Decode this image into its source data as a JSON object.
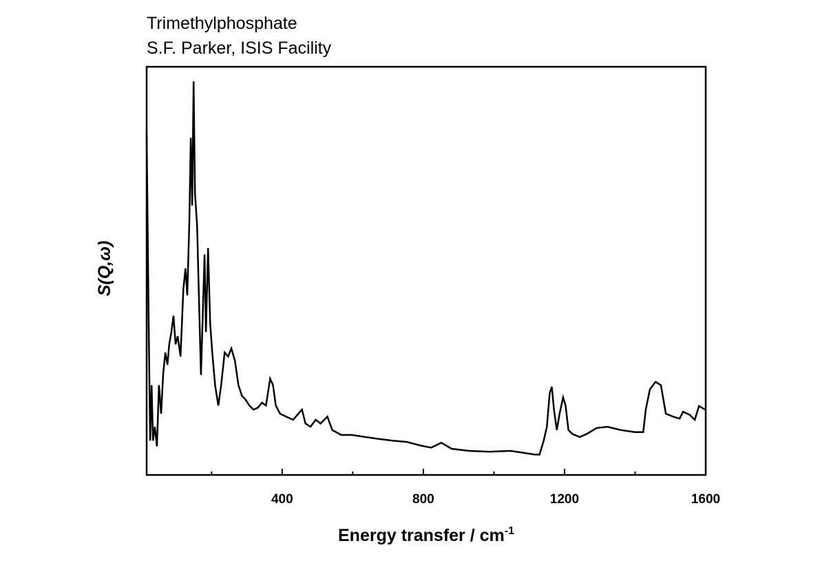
{
  "chart_data": {
    "type": "line",
    "title": "Trimethylphosphate",
    "subtitle": "S.F. Parker, ISIS Facility",
    "xlabel": "Energy transfer / cm",
    "xlabel_superscript": "-1",
    "ylabel": "S(Q,ω)",
    "xlim": [
      16,
      1600
    ],
    "ylim": [
      0,
      100
    ],
    "xticks": [
      400,
      800,
      1200,
      1600
    ],
    "xminor_ticks": [
      200,
      600,
      1000,
      1400
    ],
    "grid": false,
    "series": [
      {
        "name": "Trimethylphosphate",
        "color": "#000000",
        "x": [
          16,
          22,
          26,
          30,
          34,
          39,
          45,
          51,
          57,
          63,
          69,
          75,
          80,
          86,
          92,
          98,
          104,
          112,
          120,
          126,
          131,
          137,
          141,
          145,
          149,
          153,
          159,
          165,
          170,
          176,
          180,
          184,
          190,
          196,
          202,
          210,
          219,
          227,
          237,
          247,
          256,
          266,
          276,
          286,
          296,
          307,
          319,
          331,
          343,
          354,
          366,
          374,
          382,
          394,
          411,
          431,
          446,
          456,
          466,
          480,
          495,
          509,
          528,
          542,
          567,
          597,
          636,
          675,
          714,
          753,
          792,
          822,
          851,
          880,
          929,
          988,
          1047,
          1086,
          1115,
          1129,
          1141,
          1150,
          1158,
          1164,
          1170,
          1178,
          1186,
          1196,
          1203,
          1211,
          1223,
          1243,
          1262,
          1291,
          1321,
          1360,
          1399,
          1423,
          1430,
          1442,
          1458,
          1473,
          1487,
          1507,
          1526,
          1536,
          1555,
          1569,
          1581,
          1598
        ],
        "values": [
          83.5,
          35,
          8.4,
          22,
          8.4,
          11.8,
          7,
          22,
          15,
          25,
          30,
          27,
          32,
          35,
          39,
          32,
          34,
          29,
          45.5,
          50.6,
          44,
          62,
          82.6,
          66,
          96.4,
          69,
          61,
          40.5,
          24.5,
          42,
          54,
          35,
          55.6,
          37,
          30,
          22,
          17,
          22,
          30,
          29,
          31,
          28,
          22,
          19.4,
          18.5,
          17,
          16,
          16.5,
          17.7,
          17,
          23.6,
          22,
          17,
          15,
          14.3,
          13.5,
          15,
          16,
          12.6,
          11.8,
          13.5,
          12.6,
          14.3,
          11,
          9.8,
          9.8,
          9.3,
          8.8,
          8.4,
          8.1,
          7.2,
          6.7,
          7.9,
          6.4,
          5.9,
          5.7,
          5.9,
          5.4,
          5,
          5,
          8.4,
          11.8,
          20,
          21.6,
          16,
          11,
          15,
          19,
          17,
          11,
          10,
          9.3,
          10,
          11.5,
          11.8,
          11,
          10.5,
          10.5,
          16,
          21,
          22.8,
          22,
          15,
          14.3,
          13.8,
          15.5,
          14.7,
          13.5,
          16.9,
          16
        ]
      }
    ]
  }
}
